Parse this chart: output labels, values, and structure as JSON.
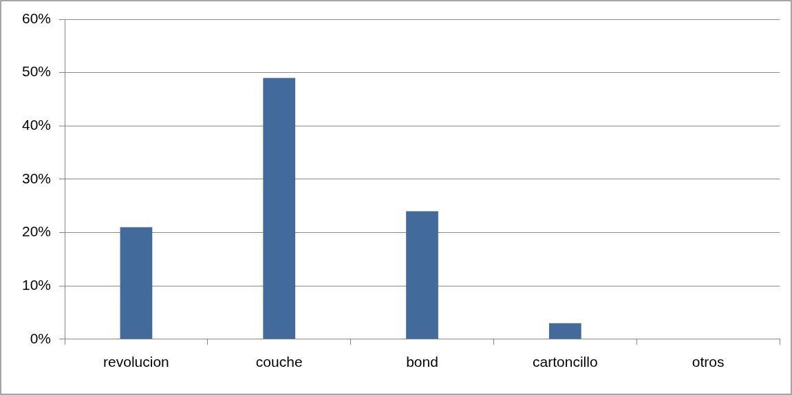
{
  "chart_data": {
    "type": "bar",
    "categories": [
      "revolucion",
      "couche",
      "bond",
      "cartoncillo",
      "otros"
    ],
    "values": [
      21,
      49,
      24,
      3,
      0
    ],
    "color": "#426a9a",
    "ylim": [
      0,
      60
    ],
    "yticks": [
      {
        "value": 0,
        "label": "0%"
      },
      {
        "value": 10,
        "label": "10%"
      },
      {
        "value": 20,
        "label": "20%"
      },
      {
        "value": 30,
        "label": "30%"
      },
      {
        "value": 40,
        "label": "40%"
      },
      {
        "value": 50,
        "label": "50%"
      },
      {
        "value": 60,
        "label": "60%"
      }
    ],
    "grid": "y",
    "legend": false
  }
}
